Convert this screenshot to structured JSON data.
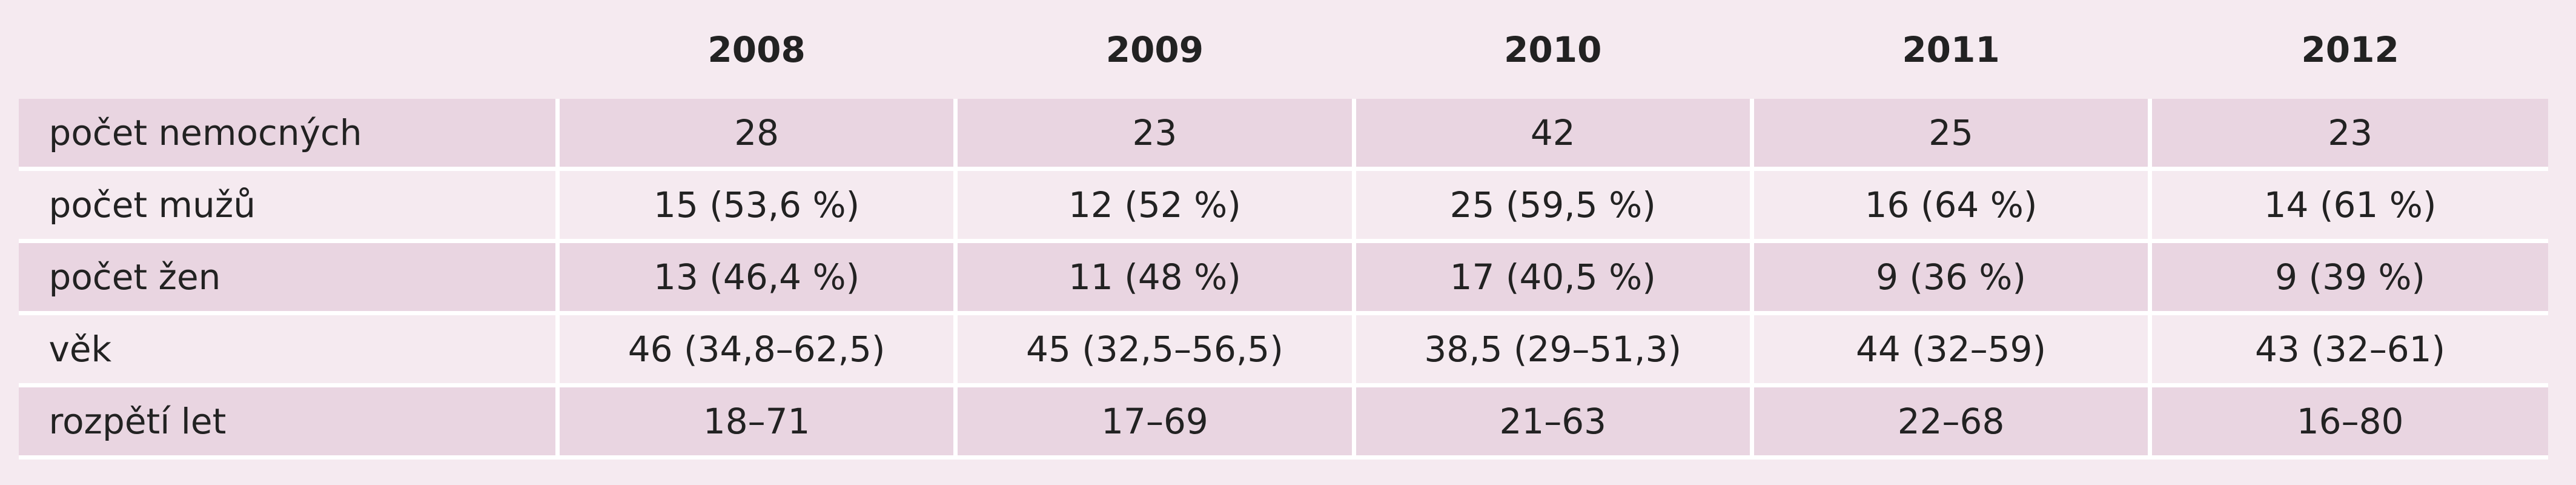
{
  "table": {
    "columns": [
      "2008",
      "2009",
      "2010",
      "2011",
      "2012"
    ],
    "rows": [
      {
        "label": "počet nemocných",
        "values": [
          "28",
          "23",
          "42",
          "25",
          "23"
        ]
      },
      {
        "label": "počet mužů",
        "values": [
          "15 (53,6 %)",
          "12 (52 %)",
          "25 (59,5 %)",
          "16 (64 %)",
          "14 (61 %)"
        ]
      },
      {
        "label": "počet žen",
        "values": [
          "13 (46,4 %)",
          "11 (48 %)",
          "17 (40,5 %)",
          "9 (36 %)",
          "9 (39 %)"
        ]
      },
      {
        "label": "věk",
        "values": [
          "46 (34,8–62,5)",
          "45 (32,5–56,5)",
          "38,5 (29–51,3)",
          "44 (32–59)",
          "43 (32–61)"
        ]
      },
      {
        "label": "rozpětí let",
        "values": [
          "18–71",
          "17–69",
          "21–63",
          "22–68",
          "16–80"
        ]
      }
    ]
  }
}
